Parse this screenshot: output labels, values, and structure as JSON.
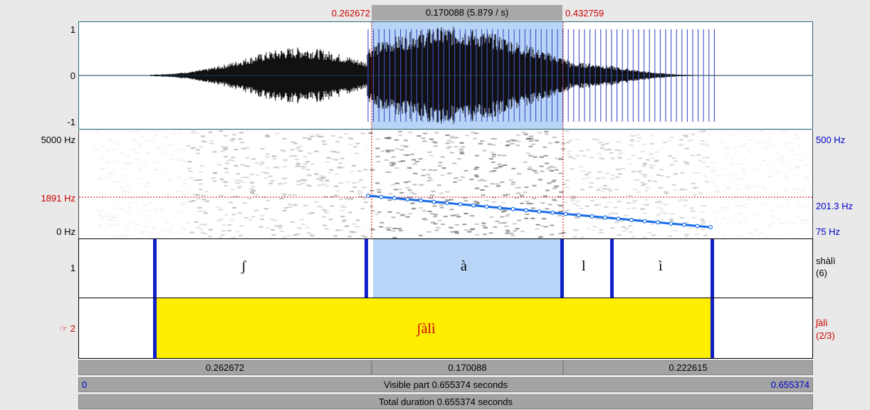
{
  "selection": {
    "start": "0.262672",
    "duration": "0.170088 (5.879 / s)",
    "end": "0.432759"
  },
  "waveform": {
    "y_max": "1",
    "y_zero": "0",
    "y_min": "-1"
  },
  "spectrogram": {
    "freq_max": "5000 Hz",
    "freq_cursor": "1891 Hz",
    "freq_min": "0 Hz",
    "pitch_max": "500 Hz",
    "pitch_value": "201.3 Hz",
    "pitch_min": "75 Hz"
  },
  "tiers": [
    {
      "number": "1",
      "name": "shàlì",
      "count": "(6)",
      "intervals": [
        "ʃ",
        "à",
        "l",
        "ì"
      ]
    },
    {
      "number": "☞ 2",
      "name": "ʃàlì",
      "count": "(2/3)",
      "intervals": [
        "ʃàlì"
      ]
    }
  ],
  "bottom": {
    "part1": "0.262672",
    "part2": "0.170088",
    "part3": "0.222615",
    "visible_start": "0",
    "visible_label": "Visible part 0.655374 seconds",
    "visible_end": "0.655374",
    "total_label": "Total duration 0.655374 seconds"
  },
  "colors": {
    "selection": "#b8d4f6",
    "boundary": "#1020c8",
    "highlight": "#ffee00",
    "pitch": "#1a6ee8",
    "cursor": "#cc0000"
  }
}
